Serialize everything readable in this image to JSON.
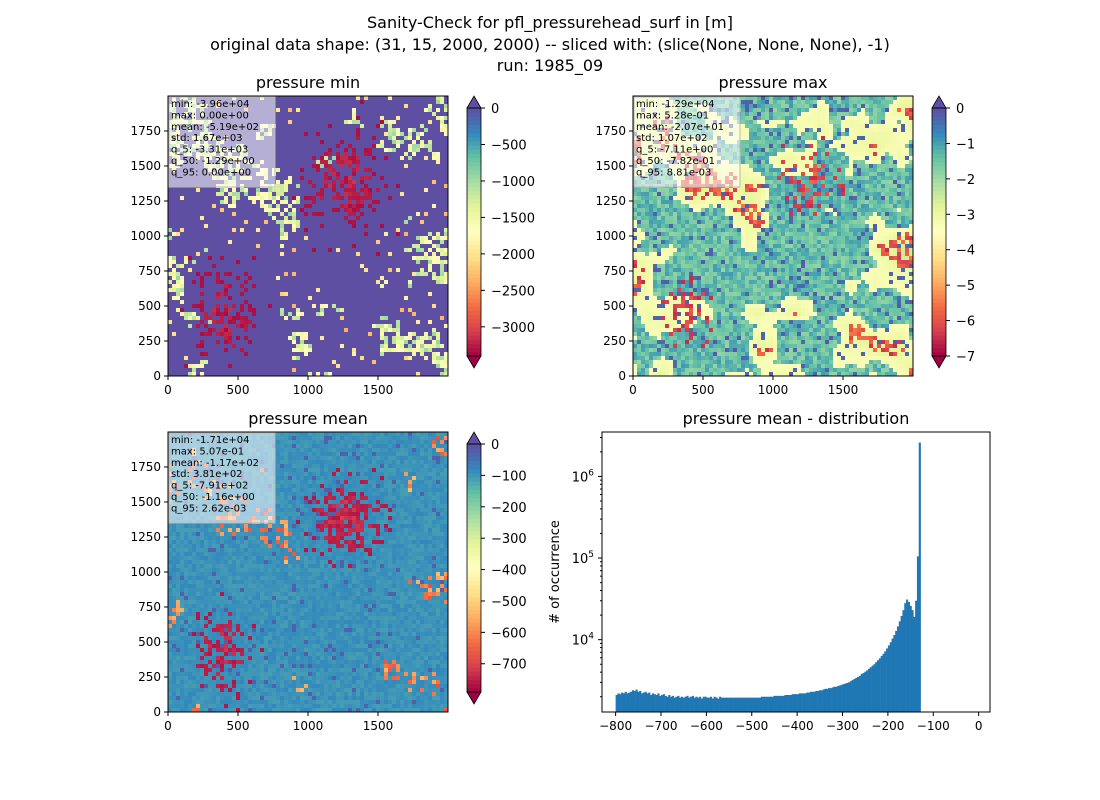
{
  "figure": {
    "title_lines": [
      "Sanity-Check for pfl_pressurehead_surf in [m]",
      "original data shape: (31, 15, 2000, 2000) -- sliced with: (slice(None, None, None), -1)",
      "run: 1985_09"
    ]
  },
  "chart_data": [
    {
      "type": "heatmap",
      "title": "pressure min",
      "xlim": [
        0,
        2000
      ],
      "ylim": [
        0,
        2000
      ],
      "xticks": [
        0,
        500,
        1000,
        1500
      ],
      "yticks": [
        0,
        250,
        500,
        750,
        1000,
        1250,
        1500,
        1750
      ],
      "colormap": "Spectral",
      "colorbar": {
        "range": [
          -3400,
          0
        ],
        "ticks": [
          0,
          -500,
          -1000,
          -1500,
          -2000,
          -2500,
          -3000
        ],
        "extend": "both"
      },
      "stats": [
        "min: -3.96e+04",
        "max: 0.00e+00",
        "mean: -5.19e+02",
        "std: 1.67e+03",
        "q_5: -3.31e+03",
        "q_50: -1.29e+00",
        "q_95: 0.00e+00"
      ]
    },
    {
      "type": "heatmap",
      "title": "pressure max",
      "xlim": [
        0,
        2000
      ],
      "ylim": [
        0,
        2000
      ],
      "xticks": [
        0,
        500,
        1000,
        1500
      ],
      "yticks": [
        0,
        250,
        500,
        750,
        1000,
        1250,
        1500,
        1750
      ],
      "colormap": "Spectral",
      "colorbar": {
        "range": [
          -7,
          0
        ],
        "ticks": [
          0,
          -1,
          -2,
          -3,
          -4,
          -5,
          -6,
          -7
        ],
        "extend": "both"
      },
      "stats": [
        "min: -1.29e+04",
        "max: 5.28e-01",
        "mean: -2.07e+01",
        "std: 1.07e+02",
        "q_5: -7.11e+00",
        "q_50: -7.82e-01",
        "q_95: 8.81e-03"
      ]
    },
    {
      "type": "heatmap",
      "title": "pressure mean",
      "xlim": [
        0,
        2000
      ],
      "ylim": [
        0,
        2000
      ],
      "xticks": [
        0,
        500,
        1000,
        1500
      ],
      "yticks": [
        0,
        250,
        500,
        750,
        1000,
        1250,
        1500,
        1750
      ],
      "colormap": "Spectral",
      "colorbar": {
        "range": [
          -790,
          0
        ],
        "ticks": [
          0,
          -100,
          -200,
          -300,
          -400,
          -500,
          -600,
          -700
        ],
        "extend": "both"
      },
      "stats": [
        "min: -1.71e+04",
        "max: 5.07e-01",
        "mean: -1.17e+02",
        "std: 3.81e+02",
        "q_5: -7.91e+02",
        "q_50: -1.16e+00",
        "q_95: 2.62e-03"
      ]
    },
    {
      "type": "bar",
      "title": "pressure mean - distribution",
      "ylabel": "# of occurrence",
      "yscale": "log",
      "xlim": [
        -830,
        25
      ],
      "ylim": [
        1300,
        3500000
      ],
      "xticks": [
        -800,
        -700,
        -600,
        -500,
        -400,
        -300,
        -200,
        -100,
        0
      ],
      "yticks": [
        10000,
        100000,
        1000000
      ],
      "bin_start": -800,
      "bin_width": 4,
      "color": "#1f77b4",
      "counts": [
        2100,
        2200,
        2150,
        2250,
        2200,
        2300,
        2200,
        2250,
        2300,
        2400,
        2350,
        2450,
        2300,
        2350,
        2200,
        2250,
        2300,
        2200,
        2250,
        2100,
        2200,
        2150,
        2100,
        2200,
        2050,
        2100,
        2150,
        2050,
        2000,
        2100,
        2000,
        2050,
        1950,
        2000,
        2050,
        1950,
        2000,
        1950,
        2000,
        2050,
        1950,
        2000,
        2050,
        1950,
        2000,
        1950,
        2000,
        1900,
        2000,
        2000,
        1950,
        1950,
        2000,
        1900,
        2000,
        1950,
        1900,
        2000,
        1950,
        1950,
        1950,
        1950,
        1950,
        1950,
        1950,
        1950,
        1950,
        1950,
        1950,
        1950,
        1950,
        1950,
        1950,
        1950,
        1950,
        1950,
        1950,
        1950,
        1950,
        1950,
        2000,
        2000,
        2000,
        2000,
        2000,
        2000,
        2000,
        2050,
        2050,
        2050,
        2050,
        2050,
        2050,
        2100,
        2100,
        2100,
        2100,
        2150,
        2150,
        2150,
        2150,
        2200,
        2200,
        2200,
        2200,
        2250,
        2250,
        2300,
        2300,
        2300,
        2350,
        2350,
        2400,
        2400,
        2450,
        2500,
        2500,
        2550,
        2550,
        2600,
        2650,
        2650,
        2700,
        2750,
        2800,
        2850,
        2900,
        2950,
        3000,
        3100,
        3200,
        3300,
        3400,
        3500,
        3600,
        3800,
        3900,
        4050,
        4200,
        4400,
        4600,
        4800,
        5000,
        5300,
        5600,
        5900,
        6300,
        6700,
        7200,
        7800,
        8500,
        9300,
        10300,
        11400,
        12800,
        14500,
        16800,
        19500,
        23000,
        28000,
        31000,
        29000,
        26000,
        23000,
        19000,
        30000,
        105000,
        2600000
      ]
    }
  ]
}
